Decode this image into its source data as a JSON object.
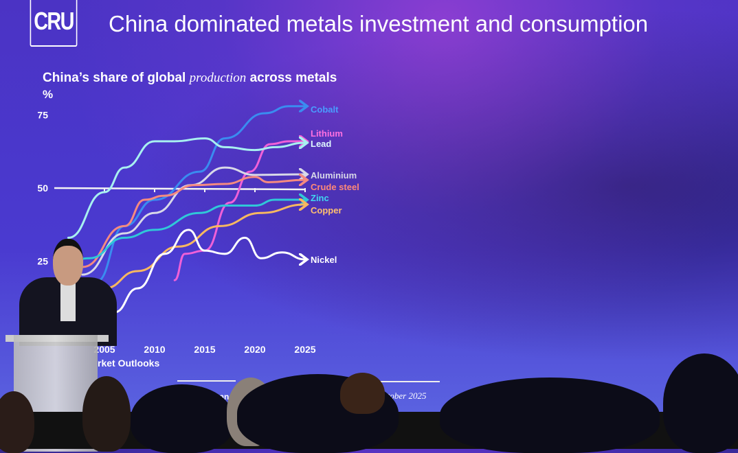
{
  "slide": {
    "logo": "CRU",
    "title": "China dominated metals investment and consumption",
    "chart_title_pre": "China’s share of global ",
    "chart_title_em": "production",
    "chart_title_post": " across metals",
    "source_fragment": "rket Outlooks",
    "source_fragment_2": "ctober 2025",
    "source_fragment_3": "pane"
  },
  "chart_data": {
    "type": "line",
    "title": "China’s share of global production across metals",
    "ylabel": "%",
    "yticks": [
      25,
      50,
      75
    ],
    "xticks": [
      2005,
      2010,
      2015,
      2020,
      2025
    ],
    "xtick_labels": [
      "2005",
      "2010",
      "2015",
      "2020",
      "2025"
    ],
    "xlim": [
      2000,
      2025
    ],
    "ylim": [
      0,
      80
    ],
    "grid": false,
    "series": [
      {
        "name": "Cobalt",
        "color": "#3a8cf0",
        "points": [
          [
            2004.2,
            18
          ],
          [
            2007,
            37
          ],
          [
            2010,
            46
          ],
          [
            2014.5,
            55.6
          ],
          [
            2017,
            67
          ],
          [
            2021,
            75.6
          ],
          [
            2023.4,
            78
          ],
          [
            2025,
            78
          ]
        ]
      },
      {
        "name": "Lithium",
        "color": "#f060d8",
        "points": [
          [
            2012,
            18.5
          ],
          [
            2013,
            27.5
          ],
          [
            2015,
            28.6
          ],
          [
            2017.5,
            45
          ],
          [
            2019.5,
            55.6
          ],
          [
            2021.5,
            65
          ],
          [
            2023.4,
            66
          ],
          [
            2025,
            66
          ]
        ]
      },
      {
        "name": "Lead",
        "color": "#a8f0f0",
        "points": [
          [
            2001.4,
            33
          ],
          [
            2005,
            48.6
          ],
          [
            2007,
            57
          ],
          [
            2010,
            66
          ],
          [
            2012,
            66
          ],
          [
            2015,
            67
          ],
          [
            2017,
            64
          ],
          [
            2020,
            63
          ],
          [
            2022,
            64
          ],
          [
            2025,
            65.5
          ]
        ]
      },
      {
        "name": "Aluminium",
        "color": "#d8d8e8",
        "points": [
          [
            2002.8,
            20.4
          ],
          [
            2007,
            34.5
          ],
          [
            2010,
            41.5
          ],
          [
            2013.6,
            51
          ],
          [
            2017,
            57
          ],
          [
            2020,
            54.5
          ],
          [
            2025,
            54.7
          ]
        ]
      },
      {
        "name": "Crude steel",
        "color": "#f58a80",
        "points": [
          [
            2002.8,
            23
          ],
          [
            2007,
            37
          ],
          [
            2009,
            46
          ],
          [
            2011,
            47.4
          ],
          [
            2014,
            51
          ],
          [
            2017,
            51.4
          ],
          [
            2020,
            53.8
          ],
          [
            2021.3,
            52
          ],
          [
            2025,
            52.8
          ]
        ]
      },
      {
        "name": "Zinc",
        "color": "#30c8d8",
        "points": [
          [
            2000,
            22.5
          ],
          [
            2003.5,
            26
          ],
          [
            2007,
            33
          ],
          [
            2010,
            35.7
          ],
          [
            2014.5,
            41.5
          ],
          [
            2017,
            44
          ],
          [
            2020,
            44
          ],
          [
            2022,
            46
          ],
          [
            2025,
            46
          ]
        ]
      },
      {
        "name": "Copper",
        "color": "#f8b860",
        "points": [
          [
            2005,
            15.7
          ],
          [
            2008.3,
            21.6
          ],
          [
            2012.4,
            30
          ],
          [
            2016.5,
            37
          ],
          [
            2020.6,
            41.5
          ],
          [
            2025,
            44.4
          ]
        ]
      },
      {
        "name": "Nickel",
        "color": "#ffffff",
        "points": [
          [
            2006,
            7.5
          ],
          [
            2008.3,
            15.7
          ],
          [
            2011,
            27.5
          ],
          [
            2013.4,
            35.7
          ],
          [
            2015,
            28.6
          ],
          [
            2017,
            27.5
          ],
          [
            2019,
            33
          ],
          [
            2020.6,
            26
          ],
          [
            2022.7,
            28
          ],
          [
            2025,
            25.6
          ]
        ]
      }
    ],
    "label_colors": {
      "Cobalt": "#4a9cff",
      "Lithium": "#ff70e0",
      "Lead": "#e0f8ff",
      "Aluminium": "#d8d8e8",
      "Crude steel": "#ff8878",
      "Zinc": "#40d8f0",
      "Copper": "#ffc070",
      "Nickel": "#ffffff"
    }
  }
}
